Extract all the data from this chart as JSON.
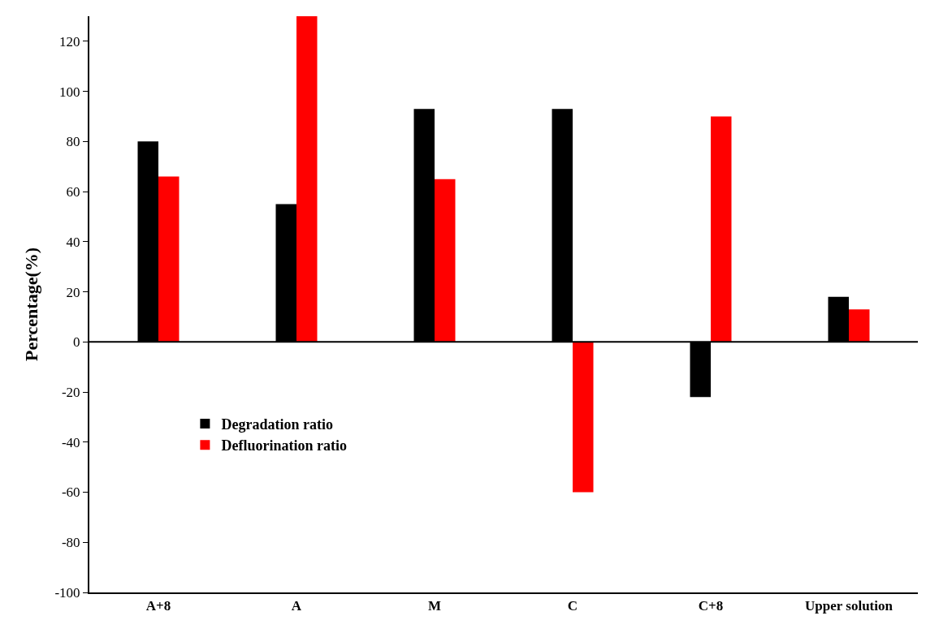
{
  "chart_data": {
    "type": "bar",
    "ylabel": "Percentage(%)",
    "categories": [
      "A+8",
      "A",
      "M",
      "C",
      "C+8",
      "Upper solution"
    ],
    "series": [
      {
        "name": "Degradation ratio",
        "color": "#000000",
        "values": [
          80,
          55,
          93,
          93,
          -22,
          18
        ]
      },
      {
        "name": "Defluorination ratio",
        "color": "#ff0000",
        "values": [
          66,
          130,
          65,
          -60,
          90,
          13
        ]
      }
    ],
    "ylim": [
      -100,
      130
    ],
    "yticks": [
      -100,
      -80,
      -60,
      -40,
      -20,
      0,
      20,
      40,
      60,
      80,
      100,
      120
    ],
    "ref_lines": [
      {
        "axis": "y",
        "value": 0,
        "color": "#000000"
      }
    ],
    "grid": false,
    "legend": "bottom left"
  }
}
